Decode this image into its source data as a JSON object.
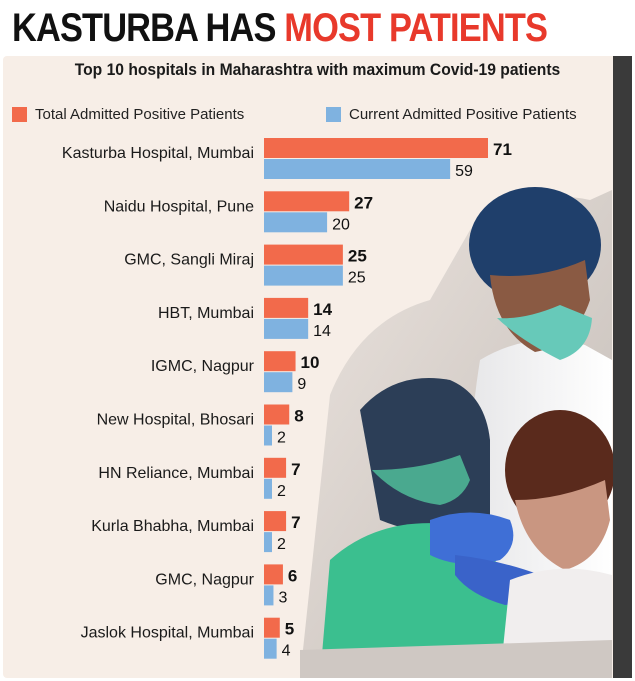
{
  "headline": {
    "part1": "KASTURBA HAS ",
    "part2": "MOST PATIENTS"
  },
  "subtitle": "Top 10 hospitals in Maharashtra with maximum Covid-19 patients",
  "legend": {
    "total": "Total Admitted Positive Patients",
    "current": "Current Admitted Positive Patients"
  },
  "colors": {
    "total": "#f26a4b",
    "current": "#7fb2e0",
    "headline_red": "#e8392b",
    "panel": "#f7eee7"
  },
  "chart_data": {
    "type": "bar",
    "orientation": "horizontal",
    "title": "Top 10 hospitals in Maharashtra with maximum Covid-19 patients",
    "xlabel": "",
    "ylabel": "",
    "xlim": [
      0,
      71
    ],
    "grid": false,
    "legend_position": "top",
    "categories": [
      "Kasturba Hospital, Mumbai",
      "Naidu Hospital, Pune",
      "GMC, Sangli Miraj",
      "HBT, Mumbai",
      "IGMC, Nagpur",
      "New Hospital, Bhosari",
      "HN Reliance, Mumbai",
      "Kurla Bhabha, Mumbai",
      "GMC, Nagpur",
      "Jaslok Hospital, Mumbai"
    ],
    "series": [
      {
        "name": "Total Admitted Positive Patients",
        "values": [
          71,
          27,
          25,
          14,
          10,
          8,
          7,
          7,
          6,
          5
        ]
      },
      {
        "name": "Current Admitted Positive Patients",
        "values": [
          59,
          20,
          25,
          14,
          9,
          2,
          2,
          2,
          3,
          4
        ]
      }
    ]
  }
}
